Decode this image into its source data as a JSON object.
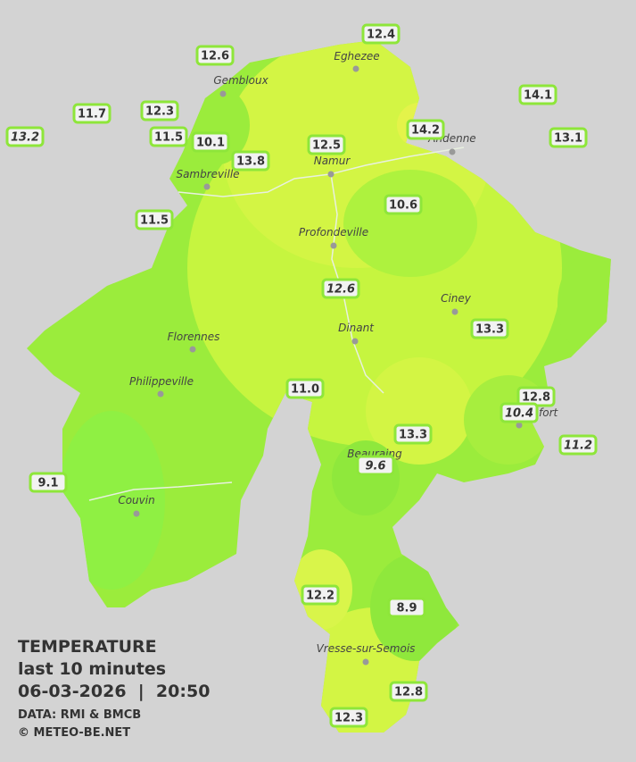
{
  "stations": [
    "12.4",
    "12.6",
    "14.1",
    "11.7",
    "12.3",
    "14.2",
    "13.2",
    "11.5",
    "10.1",
    "12.5",
    "13.1",
    "13.8",
    "10.6",
    "11.5",
    "12.6",
    "13.3",
    "11.0",
    "12.8",
    "10.4",
    "13.3",
    "11.2",
    "9.6",
    "9.1",
    "12.2",
    "8.9",
    "12.8",
    "12.3"
  ],
  "cities": [
    "Eghezee",
    "Gembloux",
    "Andenne",
    "Namur",
    "Sambreville",
    "Profondeville",
    "Ciney",
    "Dinant",
    "Florennes",
    "Philippeville",
    "Rochefort",
    "Beauraing",
    "Couvin",
    "Vresse-sur-Semois"
  ],
  "info": {
    "title": "TEMPERATURE",
    "period": "last 10 minutes",
    "datetime": "06-03-2026  |  20:50",
    "source": "DATA: RMI & BMCB",
    "copyright": "© METEO-BE.NET"
  }
}
